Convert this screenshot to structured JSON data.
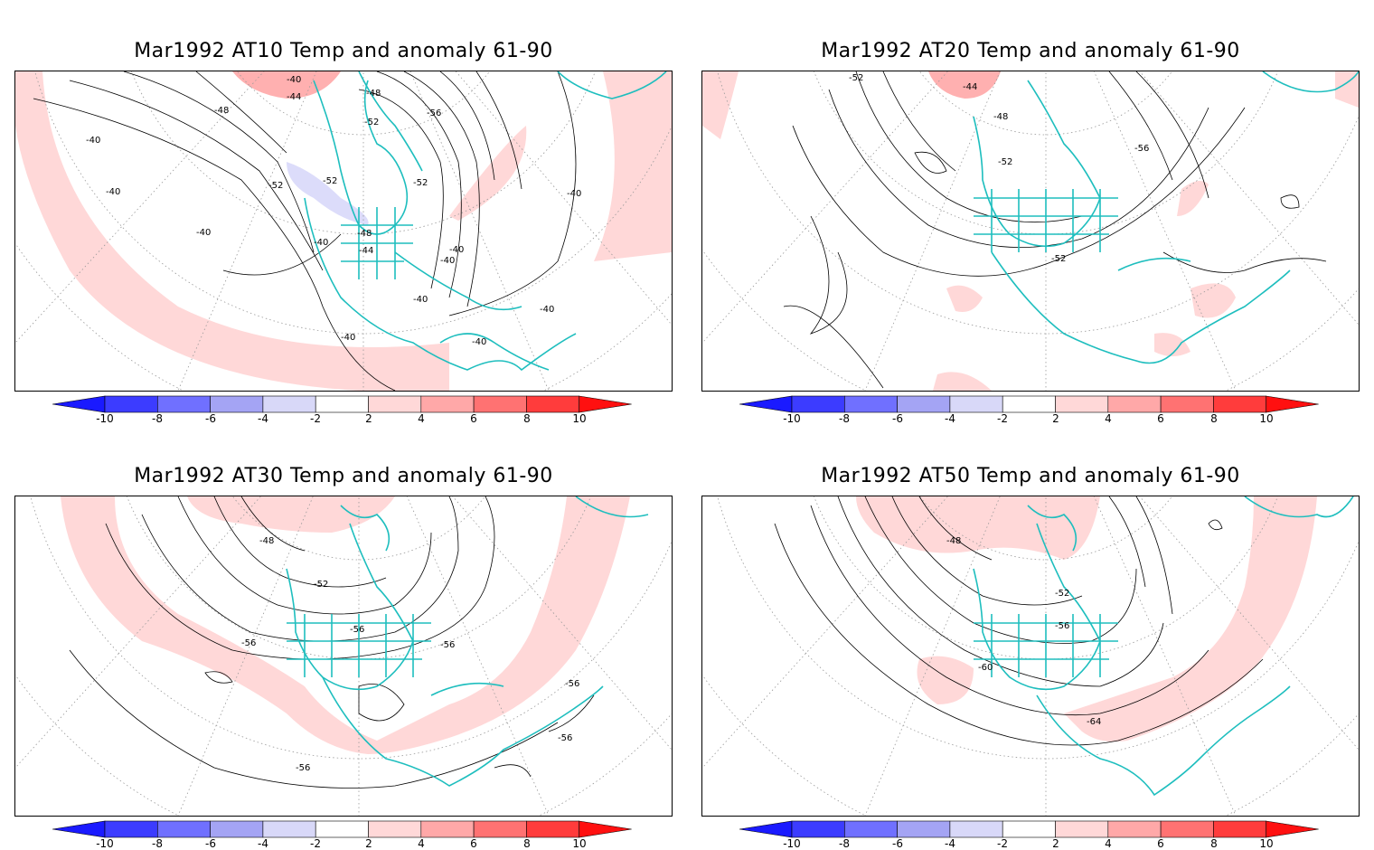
{
  "panels": [
    {
      "id": "at10",
      "title": "Mar1992 AT10 Temp and anomaly 61-90",
      "contour_labels": [
        "-40",
        "-44",
        "-48",
        "-48",
        "-52",
        "-56",
        "-52",
        "-52",
        "-52",
        "-40",
        "-40",
        "-40",
        "-48",
        "-44",
        "-40",
        "-40",
        "-40",
        "-40",
        "-40",
        "-40",
        "-40",
        "-40"
      ]
    },
    {
      "id": "at20",
      "title": "Mar1992 AT20 Temp and anomaly 61-90",
      "contour_labels": [
        "-52",
        "-44",
        "-48",
        "-52",
        "-56",
        "-52"
      ]
    },
    {
      "id": "at30",
      "title": "Mar1992 AT30 Temp and anomaly 61-90",
      "contour_labels": [
        "-48",
        "-52",
        "-56",
        "-56",
        "-56",
        "-56",
        "-56",
        "-56"
      ]
    },
    {
      "id": "at50",
      "title": "Mar1992 AT50 Temp and anomaly 61-90",
      "contour_labels": [
        "-48",
        "-52",
        "-56",
        "-60",
        "-64"
      ]
    }
  ],
  "colorbar": {
    "ticks": [
      "-10",
      "-8",
      "-6",
      "-4",
      "-2",
      "2",
      "4",
      "6",
      "8",
      "10"
    ],
    "colors": [
      "#1a1aff",
      "#3c3cff",
      "#7070ff",
      "#a4a4f4",
      "#d8d8f8",
      "#ffffff",
      "#ffd8d8",
      "#ffa8a8",
      "#ff7272",
      "#ff3c3c",
      "#ff1010"
    ]
  },
  "colors": {
    "coastline": "#1ebebe",
    "contour": "#000000",
    "warm_anomaly": "#ffd8d8",
    "cold_anomaly": "#dcdcfa"
  }
}
